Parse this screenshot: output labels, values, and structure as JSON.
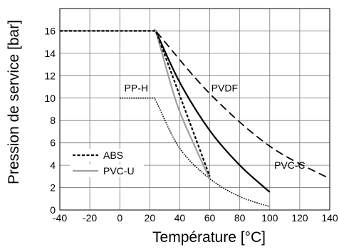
{
  "chart_data": {
    "type": "line",
    "xlabel": "Température [°C]",
    "ylabel": "Pression de service [bar]",
    "xlim": [
      -40,
      140
    ],
    "ylim": [
      0,
      18
    ],
    "xticks": [
      "-40",
      "-20",
      "0",
      "20",
      "40",
      "60",
      "80",
      "100",
      "120",
      "140"
    ],
    "yticks": [
      "0",
      "2",
      "4",
      "6",
      "8",
      "10",
      "12",
      "14",
      "16"
    ],
    "grid": true,
    "legend_position": "bottom-left",
    "series": [
      {
        "name": "ABS",
        "legend": true,
        "color": "#000000",
        "style": "dotted-dark",
        "x": [
          -40,
          24,
          60
        ],
        "y": [
          16,
          16,
          3.0
        ]
      },
      {
        "name": "PVC-U",
        "legend": true,
        "color": "#a0a0a0",
        "style": "solid-gray",
        "x": [
          -40,
          23,
          25,
          38,
          50,
          60
        ],
        "y": [
          16,
          16,
          15.5,
          9.5,
          5.7,
          2.8
        ]
      },
      {
        "name": "PVC-C",
        "legend": false,
        "label_x": 103,
        "label_y": 3.7,
        "color": "#000000",
        "style": "solid-black",
        "x": [
          -40,
          24,
          40,
          60,
          80,
          100
        ],
        "y": [
          16,
          16,
          11.4,
          7.1,
          4.0,
          1.6
        ]
      },
      {
        "name": "PVDF",
        "legend": false,
        "label_x": 61,
        "label_y": 10.6,
        "color": "#000000",
        "style": "dashed-black",
        "x": [
          -40,
          24,
          60,
          100,
          140
        ],
        "y": [
          16,
          16,
          10.4,
          5.7,
          2.8
        ]
      },
      {
        "name": "PP-H",
        "legend": false,
        "label_x": 3,
        "label_y": 10.6,
        "color": "#000000",
        "style": "dotted-fine",
        "x": [
          0,
          23,
          25,
          40,
          60,
          80,
          100
        ],
        "y": [
          10,
          10,
          9.5,
          5.5,
          2.8,
          1.2,
          0.3
        ]
      }
    ]
  }
}
